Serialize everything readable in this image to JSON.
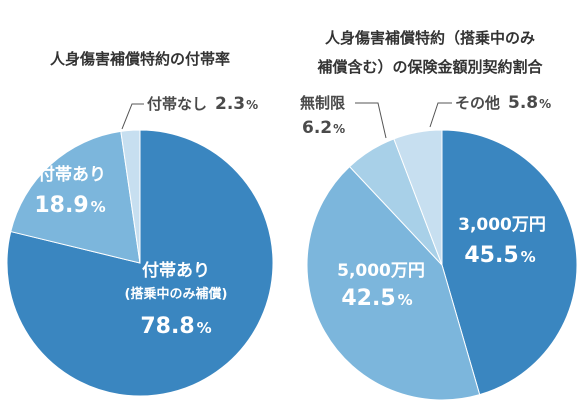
{
  "chart_data": [
    {
      "type": "pie",
      "title": "人身傷害補償特約の付帯率",
      "slices": [
        {
          "label": "付帯あり",
          "sublabel": "(搭乗中のみ補償)",
          "value": 78.8,
          "display": "78.8",
          "color": "#3a86c0"
        },
        {
          "label": "付帯あり",
          "value": 18.9,
          "display": "18.9",
          "color": "#7cb6dc"
        },
        {
          "label": "付帯なし",
          "value": 2.3,
          "display": "2.3",
          "color": "#c7dff0"
        }
      ],
      "unit": "%"
    },
    {
      "type": "pie",
      "title_lines": [
        "人身傷害補償特約（搭乗中のみ",
        "補償含む）の保険金額別契約割合"
      ],
      "slices": [
        {
          "label": "3,000万円",
          "value": 45.5,
          "display": "45.5",
          "color": "#3a86c0"
        },
        {
          "label": "5,000万円",
          "value": 42.5,
          "display": "42.5",
          "color": "#7cb6dc"
        },
        {
          "label": "無制限",
          "value": 6.2,
          "display": "6.2",
          "color": "#a8d0e8"
        },
        {
          "label": "その他",
          "value": 5.8,
          "display": "5.8",
          "color": "#c7dff0"
        }
      ],
      "unit": "%"
    }
  ]
}
